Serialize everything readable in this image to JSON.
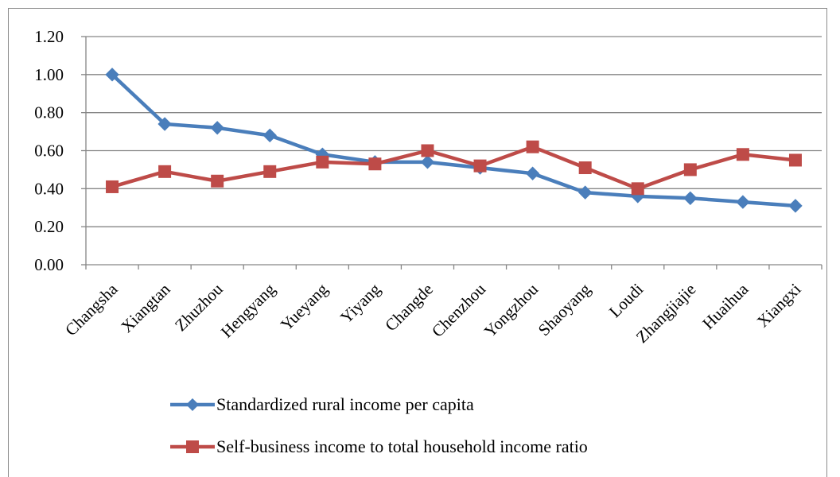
{
  "chart_data": {
    "type": "line",
    "title": "",
    "xlabel": "",
    "ylabel": "",
    "categories": [
      "Changsha",
      "Xiangtan",
      "Zhuzhou",
      "Hengyang",
      "Yueyang",
      "Yiyang",
      "Changde",
      "Chenzhou",
      "Yongzhou",
      "Shaoyang",
      "Loudi",
      "Zhangjiajie",
      "Huaihua",
      "Xiangxi"
    ],
    "ylim": [
      0,
      1.2
    ],
    "yticks": [
      "0.00",
      "0.20",
      "0.40",
      "0.60",
      "0.80",
      "1.00",
      "1.20"
    ],
    "grid": true,
    "legend_position": "bottom",
    "series": [
      {
        "name": "Standardized rural income per capita",
        "color": "#4a7ebb",
        "marker": "diamond",
        "values": [
          1.0,
          0.74,
          0.72,
          0.68,
          0.58,
          0.54,
          0.54,
          0.51,
          0.48,
          0.38,
          0.36,
          0.35,
          0.33,
          0.31
        ]
      },
      {
        "name": "Self-business income to total household income ratio",
        "color": "#be4b48",
        "marker": "square",
        "values": [
          0.41,
          0.49,
          0.44,
          0.49,
          0.54,
          0.53,
          0.6,
          0.52,
          0.62,
          0.51,
          0.4,
          0.5,
          0.58,
          0.55
        ]
      }
    ]
  }
}
